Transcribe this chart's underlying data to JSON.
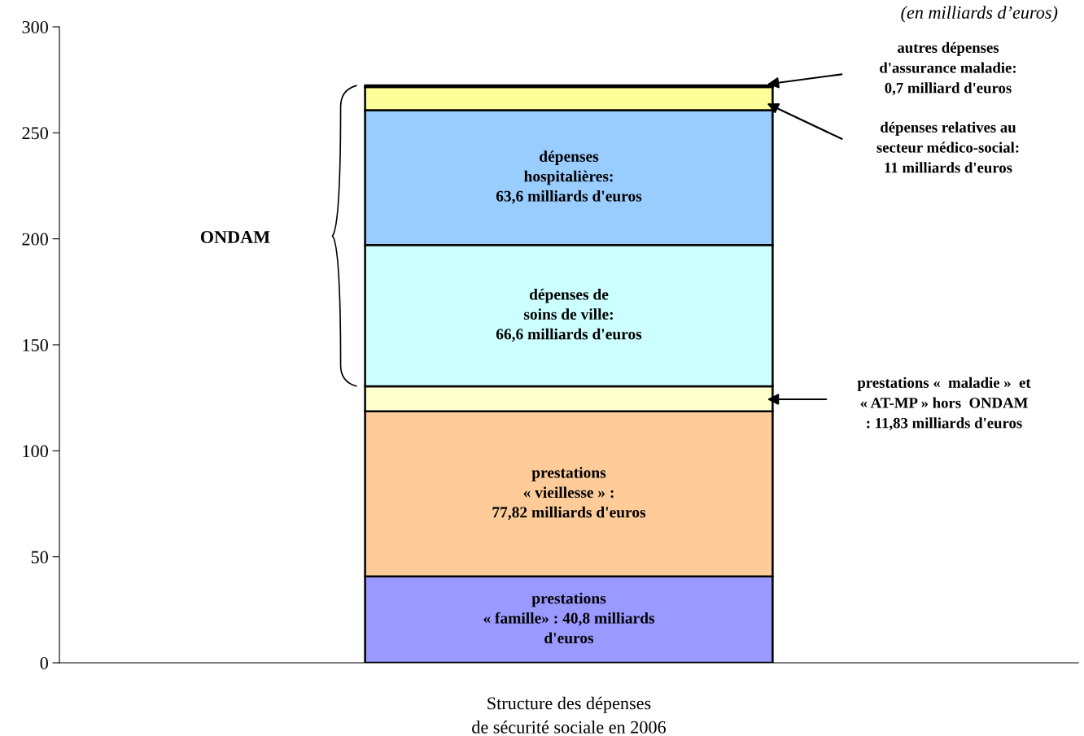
{
  "chart_data": {
    "type": "bar",
    "stacked": true,
    "categories": [
      "Structure des dépenses\nde sécurité sociale en 2006"
    ],
    "series": [
      {
        "color": "#9999ff",
        "values": [
          40.8
        ],
        "value_labels": [
          "prestations\n« famille» : 40,8 milliards\nd'euros"
        ]
      },
      {
        "color": "#ffcc99",
        "values": [
          77.82
        ],
        "value_labels": [
          "prestations\n« vieillesse » :\n77,82 milliards d'euros"
        ]
      },
      {
        "color": "#ffffcc",
        "values": [
          11.83
        ],
        "value_labels": [
          null
        ]
      },
      {
        "color": "#ccffff",
        "values": [
          66.6
        ],
        "value_labels": [
          "dépenses de\nsoins de ville:\n66,6 milliards d'euros"
        ]
      },
      {
        "color": "#99ccff",
        "values": [
          63.6
        ],
        "value_labels": [
          "dépenses\nhospitalières:\n63,6 milliards d'euros"
        ]
      },
      {
        "color": "#ffff99",
        "values": [
          11
        ],
        "value_labels": [
          null
        ]
      },
      {
        "color": "#ff0000",
        "values": [
          0.7
        ],
        "value_labels": [
          null
        ]
      }
    ],
    "ylim": [
      0,
      300
    ],
    "yticks": [
      0,
      50,
      100,
      150,
      200,
      250,
      300
    ],
    "annotations": [
      "(en milliards d’euros)",
      "ONDAM",
      "autres dépenses\nd'assurance maladie:\n0,7 milliard d'euros",
      "dépenses relatives au\nsecteur médico-social:\n11 milliards d'euros",
      "prestations «  maladie »  et\n« AT-MP » hors  ONDAM\n: 11,83 milliards d'euros"
    ]
  }
}
